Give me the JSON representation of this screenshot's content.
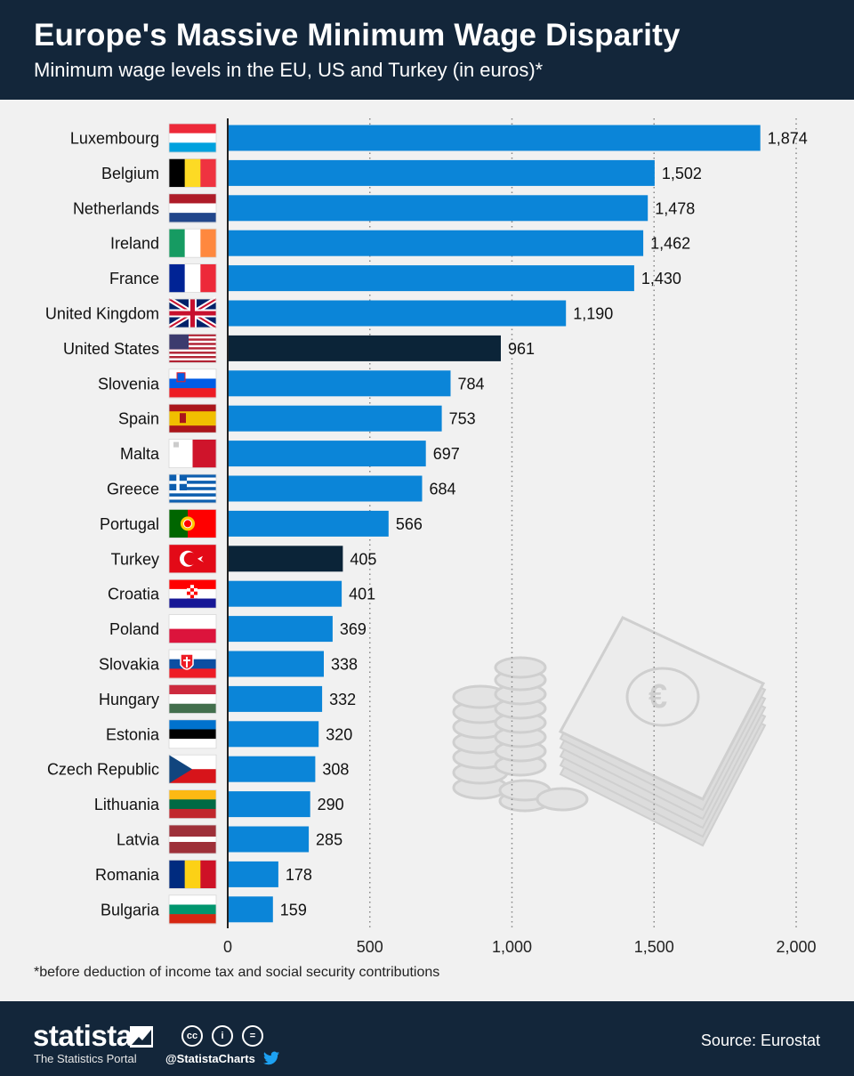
{
  "title": "Europe's Massive Minimum Wage Disparity",
  "subtitle": "Minimum wage levels in the EU, US and Turkey (in euros)*",
  "footnote": "*before deduction of income tax and social security contributions",
  "footer": {
    "logo": "statista",
    "tagline": "The Statistics Portal",
    "handle": "@StatistaCharts",
    "source": "Source: Eurostat"
  },
  "colors": {
    "header_bg": "#13263a",
    "bar": "#0b85d8",
    "bar_highlight": "#0b2438",
    "background": "#f1f1f1"
  },
  "chart_data": {
    "type": "bar",
    "orientation": "horizontal",
    "categories": [
      "Luxembourg",
      "Belgium",
      "Netherlands",
      "Ireland",
      "France",
      "United Kingdom",
      "United States",
      "Slovenia",
      "Spain",
      "Malta",
      "Greece",
      "Portugal",
      "Turkey",
      "Croatia",
      "Poland",
      "Slovakia",
      "Hungary",
      "Estonia",
      "Czech Republic",
      "Lithuania",
      "Latvia",
      "Romania",
      "Bulgaria"
    ],
    "values": [
      1874,
      1502,
      1478,
      1462,
      1430,
      1190,
      961,
      784,
      753,
      697,
      684,
      566,
      405,
      401,
      369,
      338,
      332,
      320,
      308,
      290,
      285,
      178,
      159
    ],
    "value_labels": [
      "1,874",
      "1,502",
      "1,478",
      "1,462",
      "1,430",
      "1,190",
      "961",
      "784",
      "753",
      "697",
      "684",
      "566",
      "405",
      "401",
      "369",
      "338",
      "332",
      "320",
      "308",
      "290",
      "285",
      "178",
      "159"
    ],
    "highlighted": [
      "United States",
      "Turkey"
    ],
    "xlim": [
      0,
      2000
    ],
    "xticks": [
      0,
      500,
      1000,
      1500,
      2000
    ],
    "xtick_labels": [
      "0",
      "500",
      "1,000",
      "1,500",
      "2,000"
    ],
    "grid": "vertical dotted",
    "xlabel": "",
    "ylabel": ""
  }
}
